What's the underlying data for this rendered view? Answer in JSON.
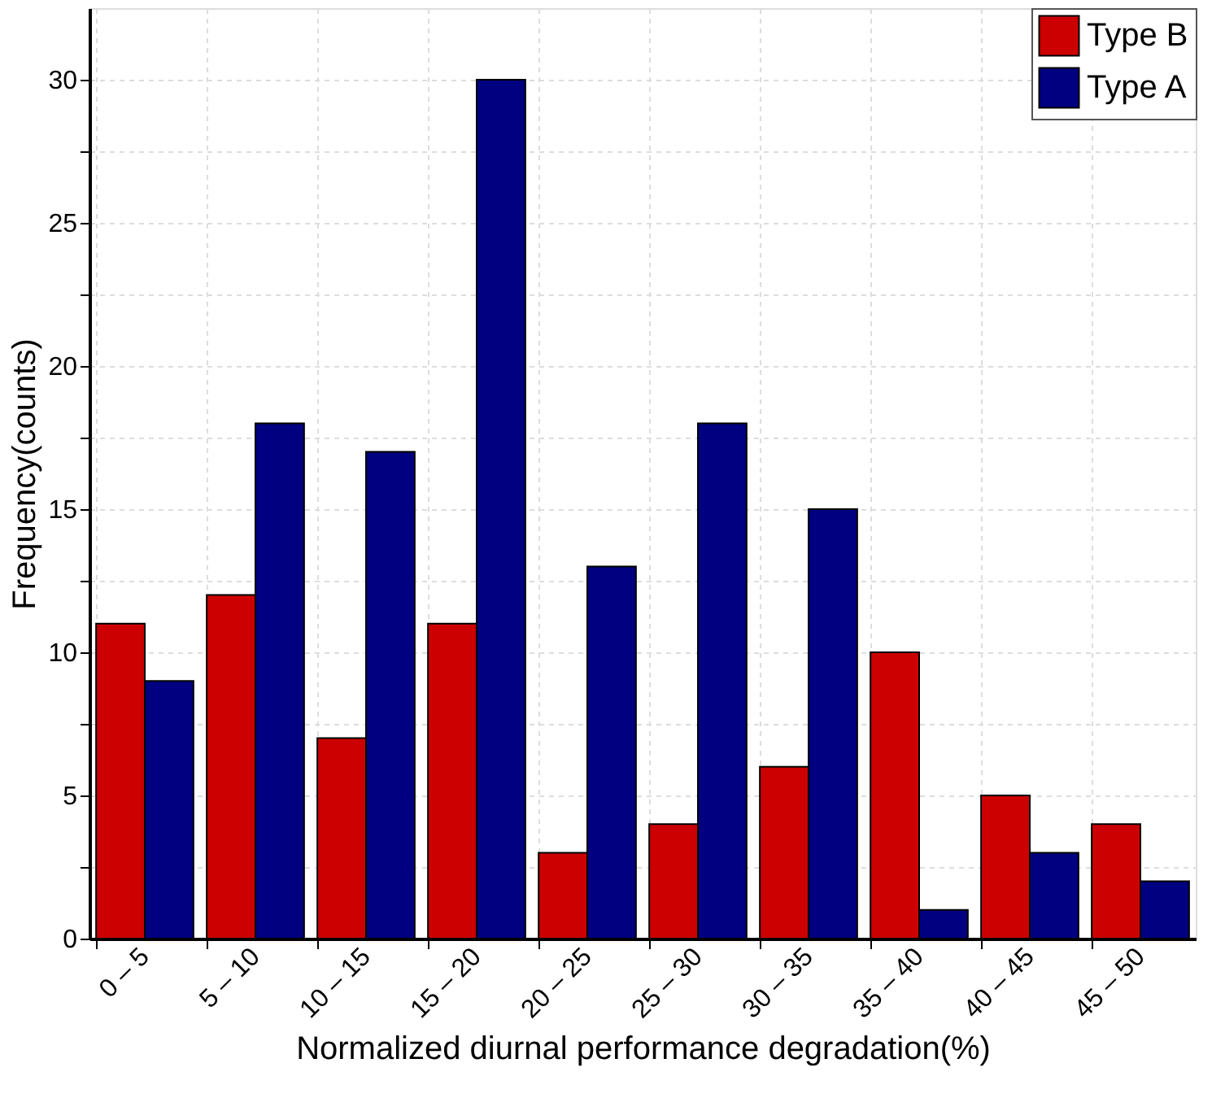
{
  "chart_data": {
    "type": "bar",
    "xlabel": "Normalized diurnal performance degradation(%)",
    "ylabel": "Frequency(counts)",
    "categories": [
      "0 – 5",
      "5 – 10",
      "10 – 15",
      "15 – 20",
      "20 – 25",
      "25 – 30",
      "30 – 35",
      "35 – 40",
      "40 – 45",
      "45 – 50"
    ],
    "series": [
      {
        "name": "Type B",
        "color": "#cc0000",
        "values": [
          11,
          12,
          7,
          11,
          3,
          4,
          6,
          10,
          5,
          4
        ]
      },
      {
        "name": "Type A",
        "color": "#000080",
        "values": [
          9,
          18,
          17,
          30,
          13,
          18,
          15,
          1,
          3,
          2
        ]
      }
    ],
    "ylim": [
      0,
      32.5
    ],
    "yticks": [
      0,
      {
        "value": 2.5,
        "label": null
      },
      5,
      {
        "value": 7.5,
        "label": null
      },
      10,
      {
        "value": 12.5,
        "label": null
      },
      15,
      {
        "value": 17.5,
        "label": null
      },
      20,
      {
        "value": 22.5,
        "label": null
      },
      25,
      {
        "value": 27.5,
        "label": null
      },
      30
    ],
    "grid": true,
    "legend": "top right"
  }
}
